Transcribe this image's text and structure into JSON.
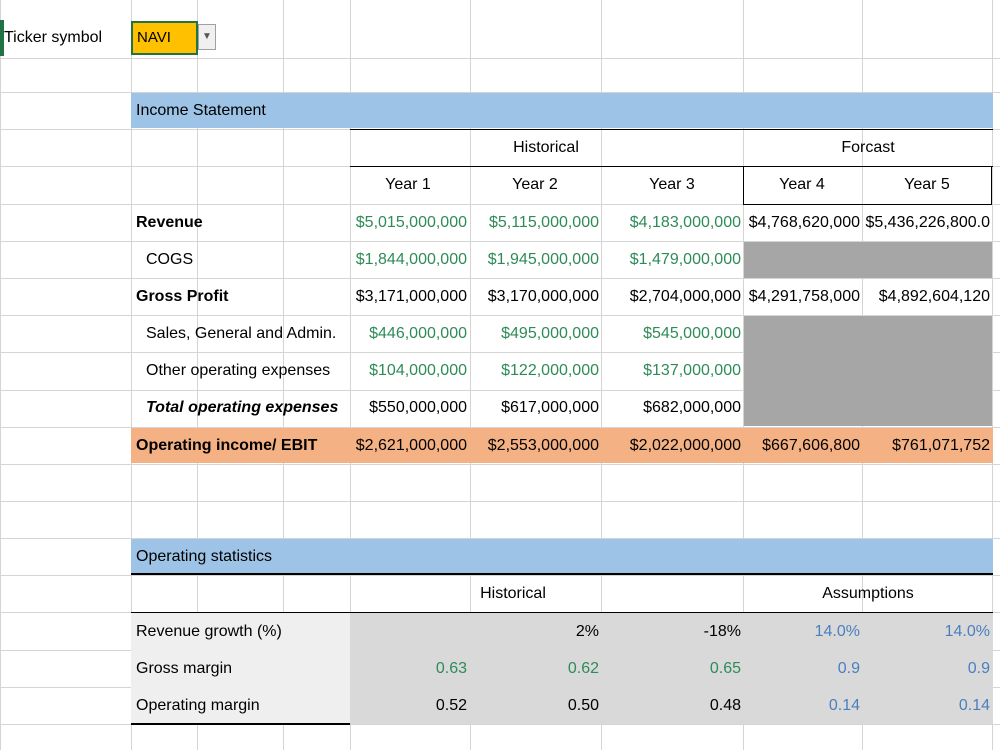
{
  "ticker": {
    "label": "Ticker symbol",
    "value": "NAVI"
  },
  "colors": {
    "header_band": "#9dc3e6",
    "ebit_band": "#f4b183",
    "positive_green": "#2e8b57",
    "assumption_blue": "#4a7fc0"
  },
  "income": {
    "title": "Income Statement",
    "historical_label": "Historical",
    "forecast_label": "Forcast",
    "years": [
      "Year 1",
      "Year 2",
      "Year 3",
      "Year 4",
      "Year 5"
    ],
    "rows": [
      {
        "label": "Revenue",
        "values": [
          "$5,015,000,000",
          "$5,115,000,000",
          "$4,183,000,000",
          "$4,768,620,000",
          "$5,436,226,800.0"
        ]
      },
      {
        "label": "COGS",
        "values": [
          "$1,844,000,000",
          "$1,945,000,000",
          "$1,479,000,000",
          "",
          ""
        ]
      },
      {
        "label": "Gross Profit",
        "values": [
          "$3,171,000,000",
          "$3,170,000,000",
          "$2,704,000,000",
          "$4,291,758,000",
          "$4,892,604,120"
        ]
      },
      {
        "label": "Sales, General and Admin.",
        "values": [
          "$446,000,000",
          "$495,000,000",
          "$545,000,000",
          "",
          ""
        ]
      },
      {
        "label": "Other operating expenses",
        "values": [
          "$104,000,000",
          "$122,000,000",
          "$137,000,000",
          "",
          ""
        ]
      },
      {
        "label": "Total operating expenses",
        "values": [
          "$550,000,000",
          "$617,000,000",
          "$682,000,000",
          "",
          ""
        ]
      },
      {
        "label": "Operating income/ EBIT",
        "values": [
          "$2,621,000,000",
          "$2,553,000,000",
          "$2,022,000,000",
          "$667,606,800",
          "$761,071,752"
        ]
      }
    ]
  },
  "stats": {
    "title": "Operating statistics",
    "historical_label": "Historical",
    "assumptions_label": "Assumptions",
    "rows": [
      {
        "label": "Revenue growth (%)",
        "values": [
          "",
          "2%",
          "-18%",
          "14.0%",
          "14.0%"
        ]
      },
      {
        "label": "Gross margin",
        "values": [
          "0.63",
          "0.62",
          "0.65",
          "0.9",
          "0.9"
        ]
      },
      {
        "label": "Operating margin",
        "values": [
          "0.52",
          "0.50",
          "0.48",
          "0.14",
          "0.14"
        ]
      }
    ]
  }
}
